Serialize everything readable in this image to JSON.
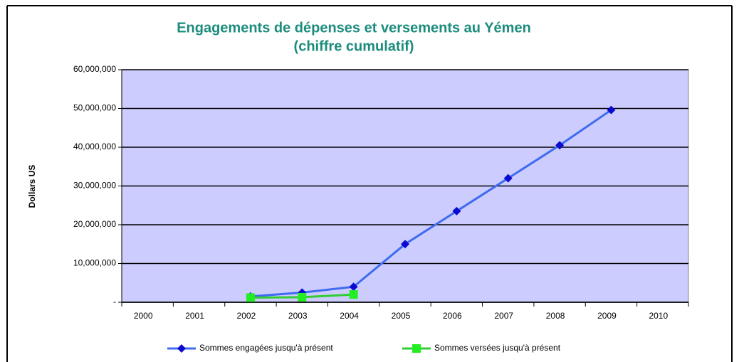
{
  "chart_data": {
    "type": "line",
    "title": "Engagements de dépenses et versements au Yémen",
    "subtitle": "(chiffre cumulatif)",
    "y_label": "Dollars US",
    "categories": [
      "2000",
      "2001",
      "2002",
      "2003",
      "2004",
      "2005",
      "2006",
      "2007",
      "2008",
      "2009",
      "2010"
    ],
    "series": [
      {
        "name": "Sommes engagées jusqu'à présent",
        "color": "#3f6bf0",
        "marker_color": "#0a0ad0",
        "marker": "diamond",
        "values": [
          null,
          null,
          1500000,
          2500000,
          4000000,
          15000000,
          23500000,
          32000000,
          40500000,
          49600000,
          null
        ]
      },
      {
        "name": "Sommes versées jusqu'à présent",
        "color": "#33cc33",
        "marker_color": "#22ee22",
        "marker": "square",
        "values": [
          null,
          null,
          1200000,
          1300000,
          2000000,
          null,
          null,
          null,
          null,
          null,
          null
        ]
      }
    ],
    "ylim": [
      0,
      60000000
    ],
    "yticks": [
      {
        "value": 0,
        "label": "-"
      },
      {
        "value": 10000000,
        "label": "10,000,000"
      },
      {
        "value": 20000000,
        "label": "20,000,000"
      },
      {
        "value": 30000000,
        "label": "30,000,000"
      },
      {
        "value": 40000000,
        "label": "40,000,000"
      },
      {
        "value": 50000000,
        "label": "50,000,000"
      },
      {
        "value": 60000000,
        "label": "60,000,000"
      }
    ],
    "grid": true,
    "background": "#ccccff",
    "legend": "bottom"
  }
}
